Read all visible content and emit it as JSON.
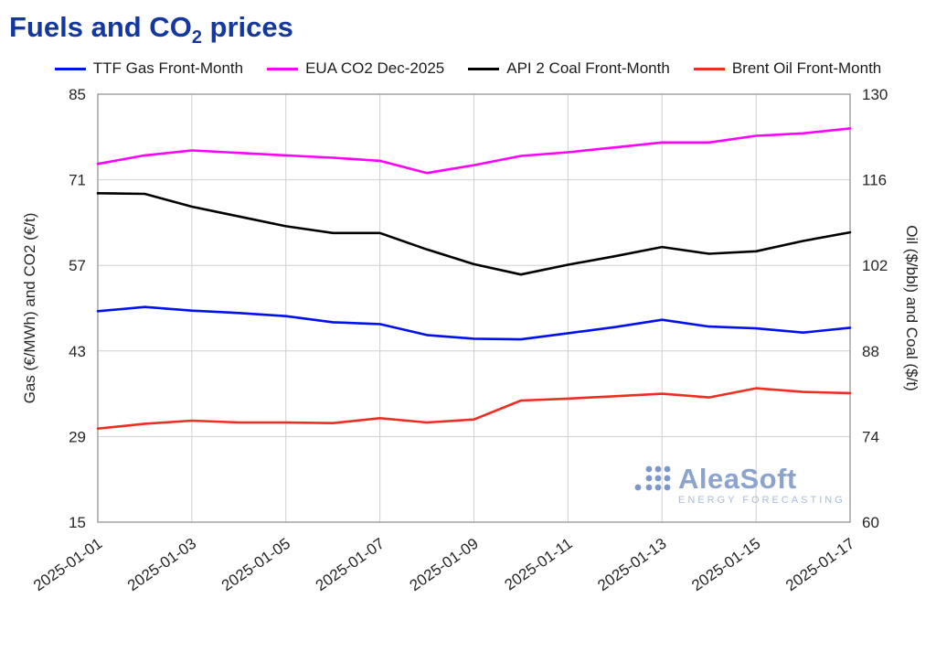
{
  "page": {
    "title_prefix": "Fuels and CO",
    "title_sub": "2",
    "title_suffix": " prices"
  },
  "watermark": {
    "name": "AleaSoft",
    "tagline": "ENERGY FORECASTING"
  },
  "chart_data": {
    "type": "line",
    "x": [
      "2025-01-01",
      "2025-01-02",
      "2025-01-03",
      "2025-01-04",
      "2025-01-05",
      "2025-01-06",
      "2025-01-07",
      "2025-01-08",
      "2025-01-09",
      "2025-01-10",
      "2025-01-11",
      "2025-01-12",
      "2025-01-13",
      "2025-01-14",
      "2025-01-15",
      "2025-01-16",
      "2025-01-17"
    ],
    "x_tick_every": 2,
    "x_tick_labels": [
      "2025-01-01",
      "2025-01-03",
      "2025-01-05",
      "2025-01-07",
      "2025-01-09",
      "2025-01-11",
      "2025-01-13",
      "2025-01-15",
      "2025-01-17"
    ],
    "axes": {
      "left": {
        "label": "Gas (€/MWh) and CO2 (€/t)",
        "min": 15,
        "max": 85,
        "ticks": [
          15,
          29,
          43,
          57,
          71,
          85
        ]
      },
      "right": {
        "label": "Oil ($/bbl) and Coal ($/t)",
        "min": 60,
        "max": 130,
        "ticks": [
          60,
          74,
          88,
          102,
          116,
          130
        ]
      }
    },
    "grid": true,
    "legend_position": "top",
    "series": [
      {
        "name": "TTF Gas Front-Month",
        "axis": "left",
        "color": "#0010ee",
        "values": [
          49.5,
          50.2,
          49.6,
          49.2,
          48.7,
          47.7,
          47.4,
          45.6,
          45.0,
          44.9,
          45.9,
          46.9,
          48.1,
          47.0,
          46.7,
          46.0,
          46.8
        ]
      },
      {
        "name": "EUA CO2 Dec-2025",
        "axis": "left",
        "color": "#ff00ff",
        "values": [
          73.6,
          75.0,
          75.8,
          75.4,
          75.0,
          74.6,
          74.1,
          72.1,
          73.4,
          74.9,
          75.5,
          76.3,
          77.1,
          77.1,
          78.2,
          78.6,
          79.4
        ]
      },
      {
        "name": "API 2 Coal Front-Month",
        "axis": "right",
        "color": "#000000",
        "values": [
          113.8,
          113.7,
          111.6,
          110.0,
          108.4,
          107.3,
          107.3,
          104.6,
          102.2,
          100.5,
          102.1,
          103.5,
          105.0,
          103.9,
          104.3,
          106.0,
          107.4
        ]
      },
      {
        "name": "Brent Oil Front-Month",
        "axis": "right",
        "color": "#f02d21",
        "values": [
          75.3,
          76.1,
          76.6,
          76.3,
          76.3,
          76.2,
          77.0,
          76.3,
          76.8,
          79.9,
          80.2,
          80.6,
          81.0,
          80.4,
          81.9,
          81.3,
          81.1
        ]
      }
    ]
  }
}
